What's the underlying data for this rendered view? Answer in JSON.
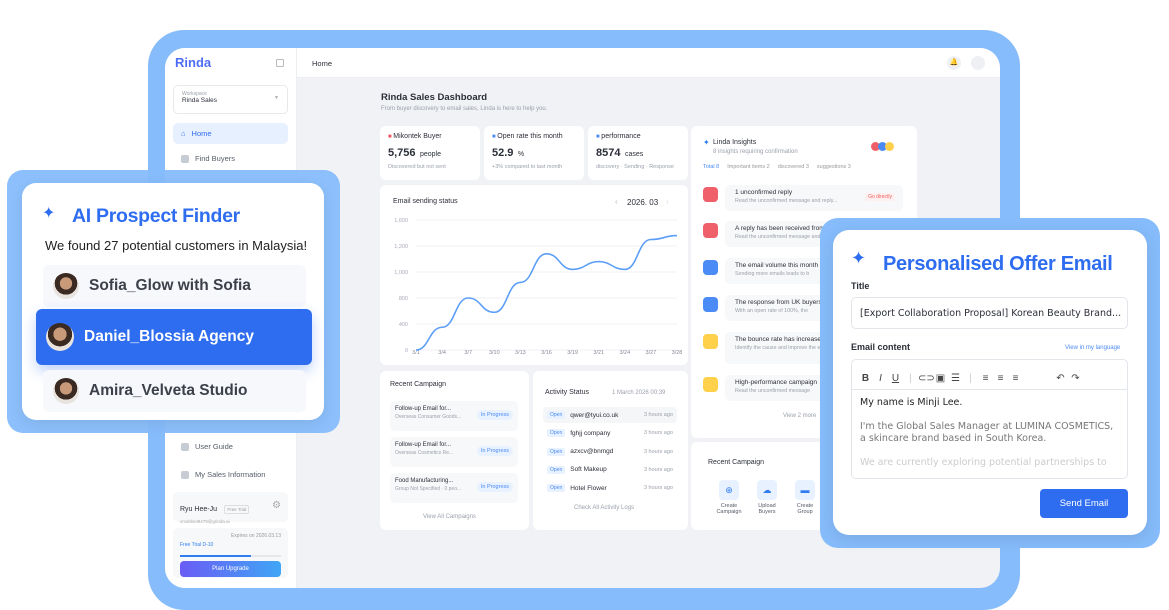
{
  "app": {
    "logo": "Rinda",
    "breadcrumb": "Home",
    "accent": "#2f6df0",
    "frame_color": "#86bcfb"
  },
  "sidebar": {
    "workspace_label": "Workspace",
    "workspace_value": "Rinda Sales",
    "items": [
      {
        "label": "Home",
        "icon": "home-icon",
        "active": true
      },
      {
        "label": "Find Buyers",
        "icon": "find-buyers-icon"
      },
      {
        "label": "User Guide",
        "icon": "book-icon"
      },
      {
        "label": "My Sales Information",
        "icon": "book-icon"
      }
    ],
    "user": {
      "name": "Ryu Hee-Ju",
      "badge": "Free Trial",
      "email": "xmdnlsel8479@grinda.ai"
    },
    "trial": {
      "label": "Free Trial D-10",
      "expires": "Expires on 2026.03.13",
      "progress": 0.7,
      "upgrade": "Plan Upgrade"
    }
  },
  "dashboard": {
    "title": "Rinda Sales Dashboard",
    "subtitle": "From buyer discovery to email sales, Linda is here to help you.",
    "stats": [
      {
        "label": "Mikontek Buyer",
        "value": "5,756",
        "unit": "people",
        "note": "Discovered but not sent",
        "dot": "#f0505a"
      },
      {
        "label": "Open rate this month",
        "value": "52.9",
        "unit": "%",
        "note": "+3% compared to last month",
        "dot": "#4b8bf5"
      },
      {
        "label": "performance",
        "value": "8574",
        "unit": "cases",
        "note": "discovery · Sending · Response",
        "dot": "#4b8bf5"
      }
    ]
  },
  "chart_data": {
    "type": "line",
    "title": "Email sending status",
    "period": "2026. 03",
    "categories": [
      "3/1",
      "3/4",
      "3/7",
      "3/10",
      "3/13",
      "3/16",
      "3/19",
      "3/21",
      "3/24",
      "3/27",
      "3/28"
    ],
    "yticks": [
      "0",
      "400",
      "800",
      "1,000",
      "1,200",
      "1,600"
    ],
    "values": [
      0,
      350,
      800,
      580,
      920,
      1140,
      1020,
      1080,
      1020,
      1300,
      1360
    ],
    "color": "#5c9ef8",
    "grid": true
  },
  "insights": {
    "title": "Linda Insights",
    "subtitle": "8 insights requiring confirmation",
    "tabs": [
      "Total 8",
      "Important items 2",
      "discovered 3",
      "suggestions 3"
    ],
    "items": [
      {
        "title": "1 unconfirmed reply",
        "desc": "Read the unconfirmed message and reply...",
        "action": "Go directly",
        "color": "#f0606a"
      },
      {
        "title": "A reply has been received from",
        "desc": "Read the unconfirmed message and",
        "color": "#f0606a"
      },
      {
        "title": "The email volume this month h",
        "desc": "Sending more emails leads to b",
        "color": "#4b8bf5"
      },
      {
        "title": "The response from UK buyers",
        "desc": "With an open rate of 100%, the",
        "color": "#4b8bf5"
      },
      {
        "title": "The bounce rate has increased",
        "desc": "Identify the cause and improve the email content",
        "color": "#ffd04a"
      },
      {
        "title": "High-performance campaign",
        "desc": "Read the unconfirmed message",
        "color": "#ffd04a"
      }
    ],
    "more": "View 2 more"
  },
  "recent_campaign": {
    "title": "Recent Campaign",
    "items": [
      {
        "name": "Follow-up Email for...",
        "desc": "Overseas Consumer Goods...",
        "status": "In Progress"
      },
      {
        "name": "Follow-up Email for...",
        "desc": "Overseas Cosmetics Re...",
        "status": "In Progress"
      },
      {
        "name": "Food Manufacturing...",
        "desc": "Group Not Specified · 0 peo...",
        "status": "In Progress"
      }
    ],
    "link": "View All Campaigns"
  },
  "activity": {
    "title": "Activity Status",
    "date": "1 March 2026 00:39",
    "items": [
      {
        "badge": "Open",
        "name": "qwer@tyui.co.uk",
        "time": "3 hours ago"
      },
      {
        "badge": "Open",
        "name": "fghjj company",
        "time": "3 hours ago"
      },
      {
        "badge": "Open",
        "name": "azxcv@bnmgd",
        "time": "3 hours ago"
      },
      {
        "badge": "Open",
        "name": "Soft Makeup",
        "time": "3 hours ago"
      },
      {
        "badge": "Open",
        "name": "Hotel Flower",
        "time": "3 hours ago"
      }
    ],
    "link": "Check All Activity Logs"
  },
  "quick": {
    "title": "Recent Campaign",
    "actions": [
      {
        "label": "Create Campaign",
        "icon": "plus-circle-icon"
      },
      {
        "label": "Upload Buyers",
        "icon": "cloud-upload-icon"
      },
      {
        "label": "Create Group",
        "icon": "folder-icon"
      }
    ]
  },
  "prospect": {
    "title": "AI Prospect Finder",
    "subtitle": "We found 27 potential customers in Malaysia!",
    "items": [
      "Sofia_Glow with Sofia",
      "Daniel_Blossia Agency",
      "Amira_Velveta Studio"
    ]
  },
  "email": {
    "title": "Personalised Offer Email",
    "title_label": "Title",
    "title_value": "[Export Collaboration Proposal] Korean Beauty Brand...",
    "content_label": "Email content",
    "translate": "View in my language",
    "body": [
      "My name is Minji Lee.",
      "I'm the Global Sales Manager at LUMINA COSMETICS, a skincare brand based in South Korea.",
      "We are currently exploring potential partnerships to"
    ],
    "send": "Send Email"
  }
}
